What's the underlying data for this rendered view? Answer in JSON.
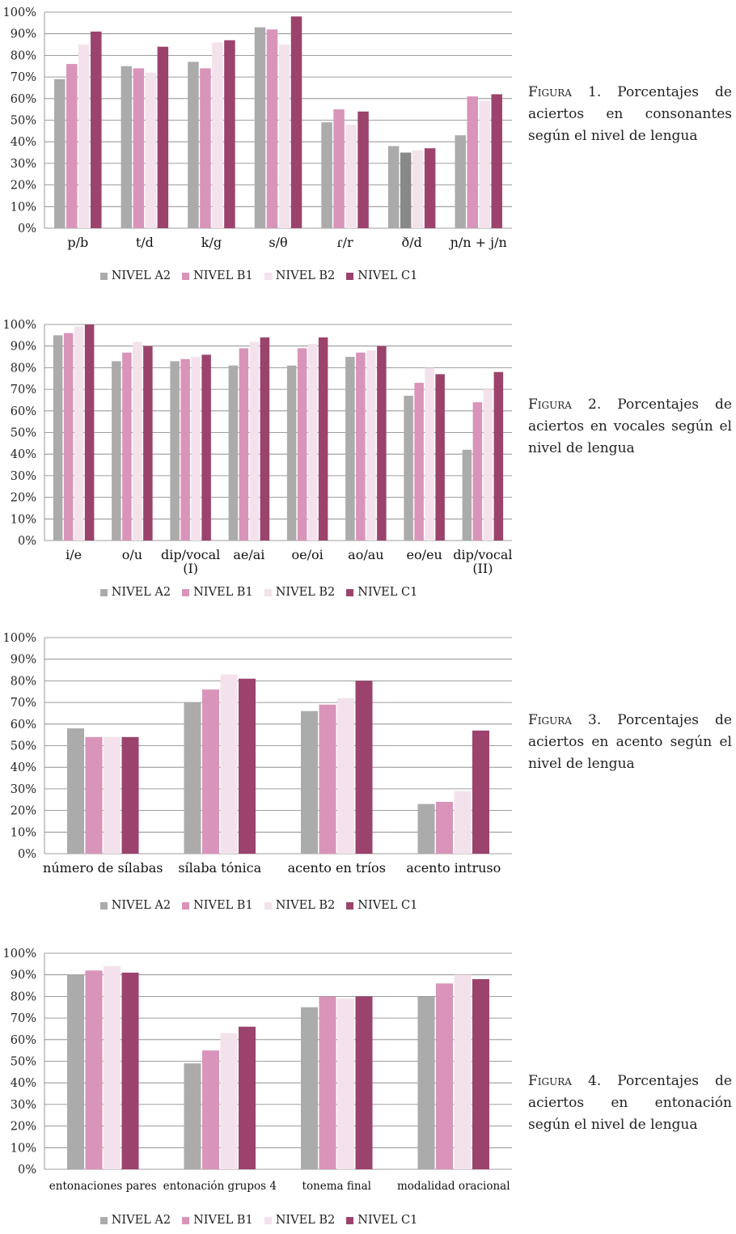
{
  "colors": {
    "A2": "#ababab",
    "B1": "#d994b9",
    "B2": "#f3e2ec",
    "C1": "#9b436c",
    "grid": "#7f7f7f",
    "a2_highlight": "#888888"
  },
  "legend": [
    "NIVEL A2",
    "NIVEL B1",
    "NIVEL B2",
    "NIVEL C1"
  ],
  "chart_data": [
    {
      "type": "bar",
      "categories": [
        "p/b",
        "t/d",
        "k/g",
        "s/θ",
        "ɾ/r",
        "ð/d",
        "ɲ/n + j/n"
      ],
      "series": [
        {
          "name": "NIVEL A2",
          "values": [
            69,
            75,
            77,
            93,
            49,
            38,
            43
          ]
        },
        {
          "name": "NIVEL B1",
          "values": [
            76,
            74,
            74,
            92,
            55,
            35,
            61
          ]
        },
        {
          "name": "NIVEL B2",
          "values": [
            85,
            72,
            86,
            85,
            48,
            36,
            59
          ]
        },
        {
          "name": "NIVEL C1",
          "values": [
            91,
            84,
            87,
            98,
            54,
            37,
            62
          ]
        }
      ],
      "y_ticks": [
        "0%",
        "10%",
        "20%",
        "30%",
        "40%",
        "50%",
        "60%",
        "70%",
        "80%",
        "90%",
        "100%"
      ],
      "ylim": [
        0,
        100
      ],
      "grid": true,
      "legend_position": "bottom"
    },
    {
      "type": "bar",
      "categories": [
        "i/e",
        "o/u",
        "dip/vocal (I)",
        "ae/ai",
        "oe/oi",
        "ao/au",
        "eo/eu",
        "dip/vocal (II)"
      ],
      "category_lines": [
        [
          "i/e"
        ],
        [
          "o/u"
        ],
        [
          "dip/vocal",
          "(I)"
        ],
        [
          "ae/ai"
        ],
        [
          "oe/oi"
        ],
        [
          "ao/au"
        ],
        [
          "eo/eu"
        ],
        [
          "dip/vocal",
          "(II)"
        ]
      ],
      "series": [
        {
          "name": "NIVEL A2",
          "values": [
            95,
            83,
            83,
            81,
            81,
            85,
            67,
            42
          ]
        },
        {
          "name": "NIVEL B1",
          "values": [
            96,
            87,
            84,
            89,
            89,
            87,
            73,
            64
          ]
        },
        {
          "name": "NIVEL B2",
          "values": [
            99,
            92,
            85,
            92,
            91,
            88,
            80,
            70
          ]
        },
        {
          "name": "NIVEL C1",
          "values": [
            100,
            90,
            86,
            94,
            94,
            90,
            77,
            78
          ]
        }
      ],
      "y_ticks": [
        "0%",
        "10%",
        "20%",
        "30%",
        "40%",
        "50%",
        "60%",
        "70%",
        "80%",
        "90%",
        "100%"
      ],
      "ylim": [
        0,
        100
      ],
      "grid": true,
      "legend_position": "bottom"
    },
    {
      "type": "bar",
      "categories": [
        "número de sílabas",
        "sílaba tónica",
        "acento en tríos",
        "acento intruso"
      ],
      "series": [
        {
          "name": "NIVEL A2",
          "values": [
            58,
            70,
            66,
            23
          ]
        },
        {
          "name": "NIVEL B1",
          "values": [
            54,
            76,
            69,
            24
          ]
        },
        {
          "name": "NIVEL B2",
          "values": [
            54,
            83,
            72,
            29
          ]
        },
        {
          "name": "NIVEL C1",
          "values": [
            54,
            81,
            80,
            57
          ]
        }
      ],
      "y_ticks": [
        "0%",
        "10%",
        "20%",
        "30%",
        "40%",
        "50%",
        "60%",
        "70%",
        "80%",
        "90%",
        "100%"
      ],
      "ylim": [
        0,
        100
      ],
      "grid": true,
      "legend_position": "bottom"
    },
    {
      "type": "bar",
      "categories": [
        "entonaciones pares",
        "entonación grupos 4",
        "tonema final",
        "modalidad oracional"
      ],
      "series": [
        {
          "name": "NIVEL A2",
          "values": [
            90,
            49,
            75,
            80
          ]
        },
        {
          "name": "NIVEL B1",
          "values": [
            92,
            55,
            80,
            86
          ]
        },
        {
          "name": "NIVEL B2",
          "values": [
            94,
            63,
            79,
            90
          ]
        },
        {
          "name": "NIVEL C1",
          "values": [
            91,
            66,
            80,
            88
          ]
        }
      ],
      "y_ticks": [
        "0%",
        "10%",
        "20%",
        "30%",
        "40%",
        "50%",
        "60%",
        "70%",
        "80%",
        "90%",
        "100%"
      ],
      "ylim": [
        0,
        100
      ],
      "grid": true,
      "legend_position": "bottom"
    }
  ],
  "captions": [
    {
      "lead": "Figura 1.",
      "text": " Porcentajes de aciertos en consonantes según el nivel de lengua"
    },
    {
      "lead": "Figura 2.",
      "text": " Porcentajes de aciertos en vocales según el nivel de lengua"
    },
    {
      "lead": "Figura 3.",
      "text": " Porcentajes de aciertos en acento según el nivel de lengua"
    },
    {
      "lead": "Figura 4.",
      "text": " Porcentajes de aciertos en entonación según el nivel de lengua"
    }
  ]
}
